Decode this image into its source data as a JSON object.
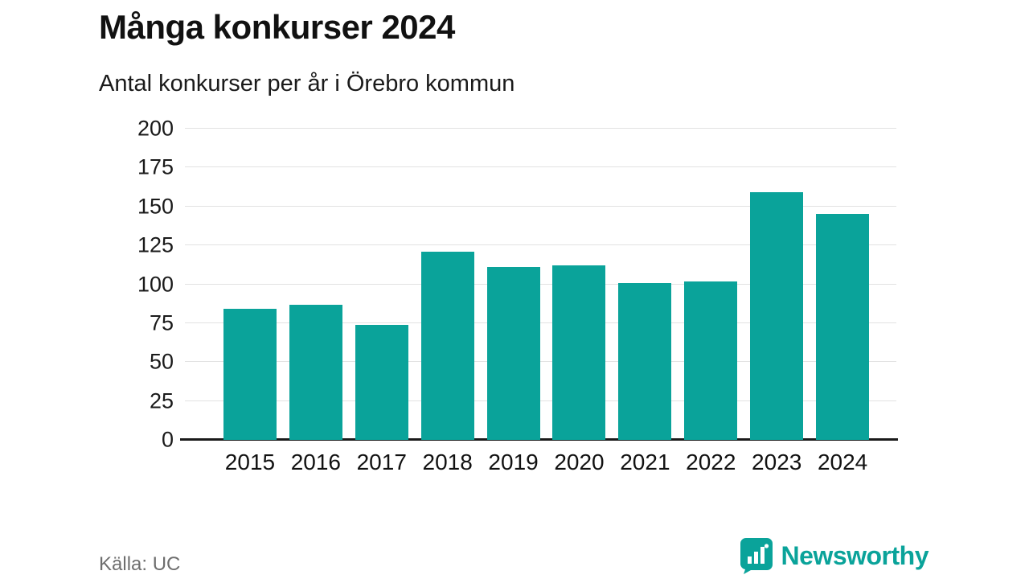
{
  "header": {
    "title": "Många konkurser 2024",
    "subtitle": "Antal konkurser per år i Örebro kommun"
  },
  "footer": {
    "source": "Källa: UC",
    "brand": "Newsworthy"
  },
  "colors": {
    "bar": "#0aa39a",
    "brand": "#0aa39a",
    "axis": "#1a1a1a",
    "grid": "#e2e2e2",
    "source_text": "#6e6e6e"
  },
  "chart_data": {
    "type": "bar",
    "title": "Många konkurser 2024",
    "subtitle": "Antal konkurser per år i Örebro kommun",
    "categories": [
      "2015",
      "2016",
      "2017",
      "2018",
      "2019",
      "2020",
      "2021",
      "2022",
      "2023",
      "2024"
    ],
    "values": [
      84,
      87,
      74,
      121,
      111,
      112,
      101,
      102,
      159,
      145
    ],
    "xlabel": "",
    "ylabel": "",
    "ylim": [
      0,
      200
    ],
    "yticks": [
      0,
      25,
      50,
      75,
      100,
      125,
      150,
      175,
      200
    ],
    "grid": true,
    "legend": false,
    "bar_color": "#0aa39a",
    "source": "Källa: UC"
  }
}
